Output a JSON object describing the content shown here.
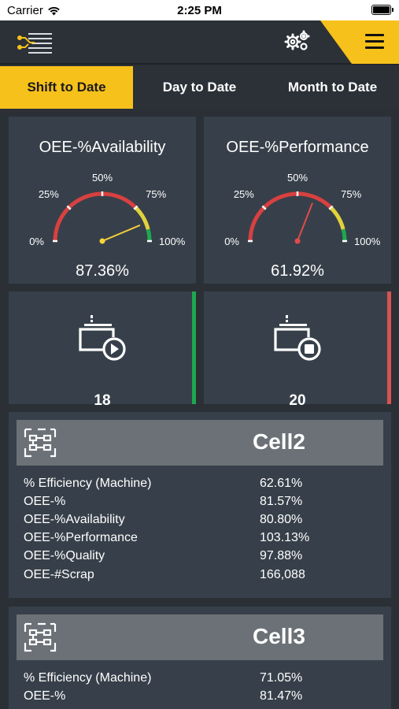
{
  "status_bar": {
    "carrier": "Carrier",
    "time": "2:25 PM"
  },
  "colors": {
    "accent": "#f7c11b",
    "running": "#1fa84f",
    "stopped": "#d9534f",
    "card": "#37404a",
    "background": "#2a3036"
  },
  "topbar": {
    "logo_icon": "circuit-lines-icon",
    "settings_icon": "gears-icon",
    "menu_icon": "hamburger-menu-icon"
  },
  "tabs": [
    {
      "label": "Shift to Date",
      "active": true
    },
    {
      "label": "Day to Date",
      "active": false
    },
    {
      "label": "Month to Date",
      "active": false
    }
  ],
  "gauges": [
    {
      "title": "OEE-%Availability",
      "value_text": "87.36%",
      "value": 87.36,
      "needle_color": "#f7d23a",
      "ticks": [
        "0%",
        "25%",
        "50%",
        "75%",
        "100%"
      ]
    },
    {
      "title": "OEE-%Performance",
      "value_text": "61.92%",
      "value": 61.92,
      "needle_color": "#e14b4b",
      "ticks": [
        "0%",
        "25%",
        "50%",
        "75%",
        "100%"
      ]
    }
  ],
  "machines": [
    {
      "icon": "machine-running-icon",
      "count": "18",
      "status": "running"
    },
    {
      "icon": "machine-stopped-icon",
      "count": "20",
      "status": "stopped"
    }
  ],
  "cells": [
    {
      "name": "Cell2",
      "icon": "cell-layout-icon",
      "rows": [
        {
          "label": "% Efficiency (Machine)",
          "value": "62.61%"
        },
        {
          "label": "OEE-%",
          "value": "81.57%"
        },
        {
          "label": "OEE-%Availability",
          "value": "80.80%"
        },
        {
          "label": "OEE-%Performance",
          "value": "103.13%"
        },
        {
          "label": "OEE-%Quality",
          "value": "97.88%"
        },
        {
          "label": "OEE-#Scrap",
          "value": "166,088"
        }
      ]
    },
    {
      "name": "Cell3",
      "icon": "cell-layout-icon",
      "rows": [
        {
          "label": "% Efficiency (Machine)",
          "value": "71.05%"
        },
        {
          "label": "OEE-%",
          "value": "81.47%"
        }
      ]
    }
  ]
}
